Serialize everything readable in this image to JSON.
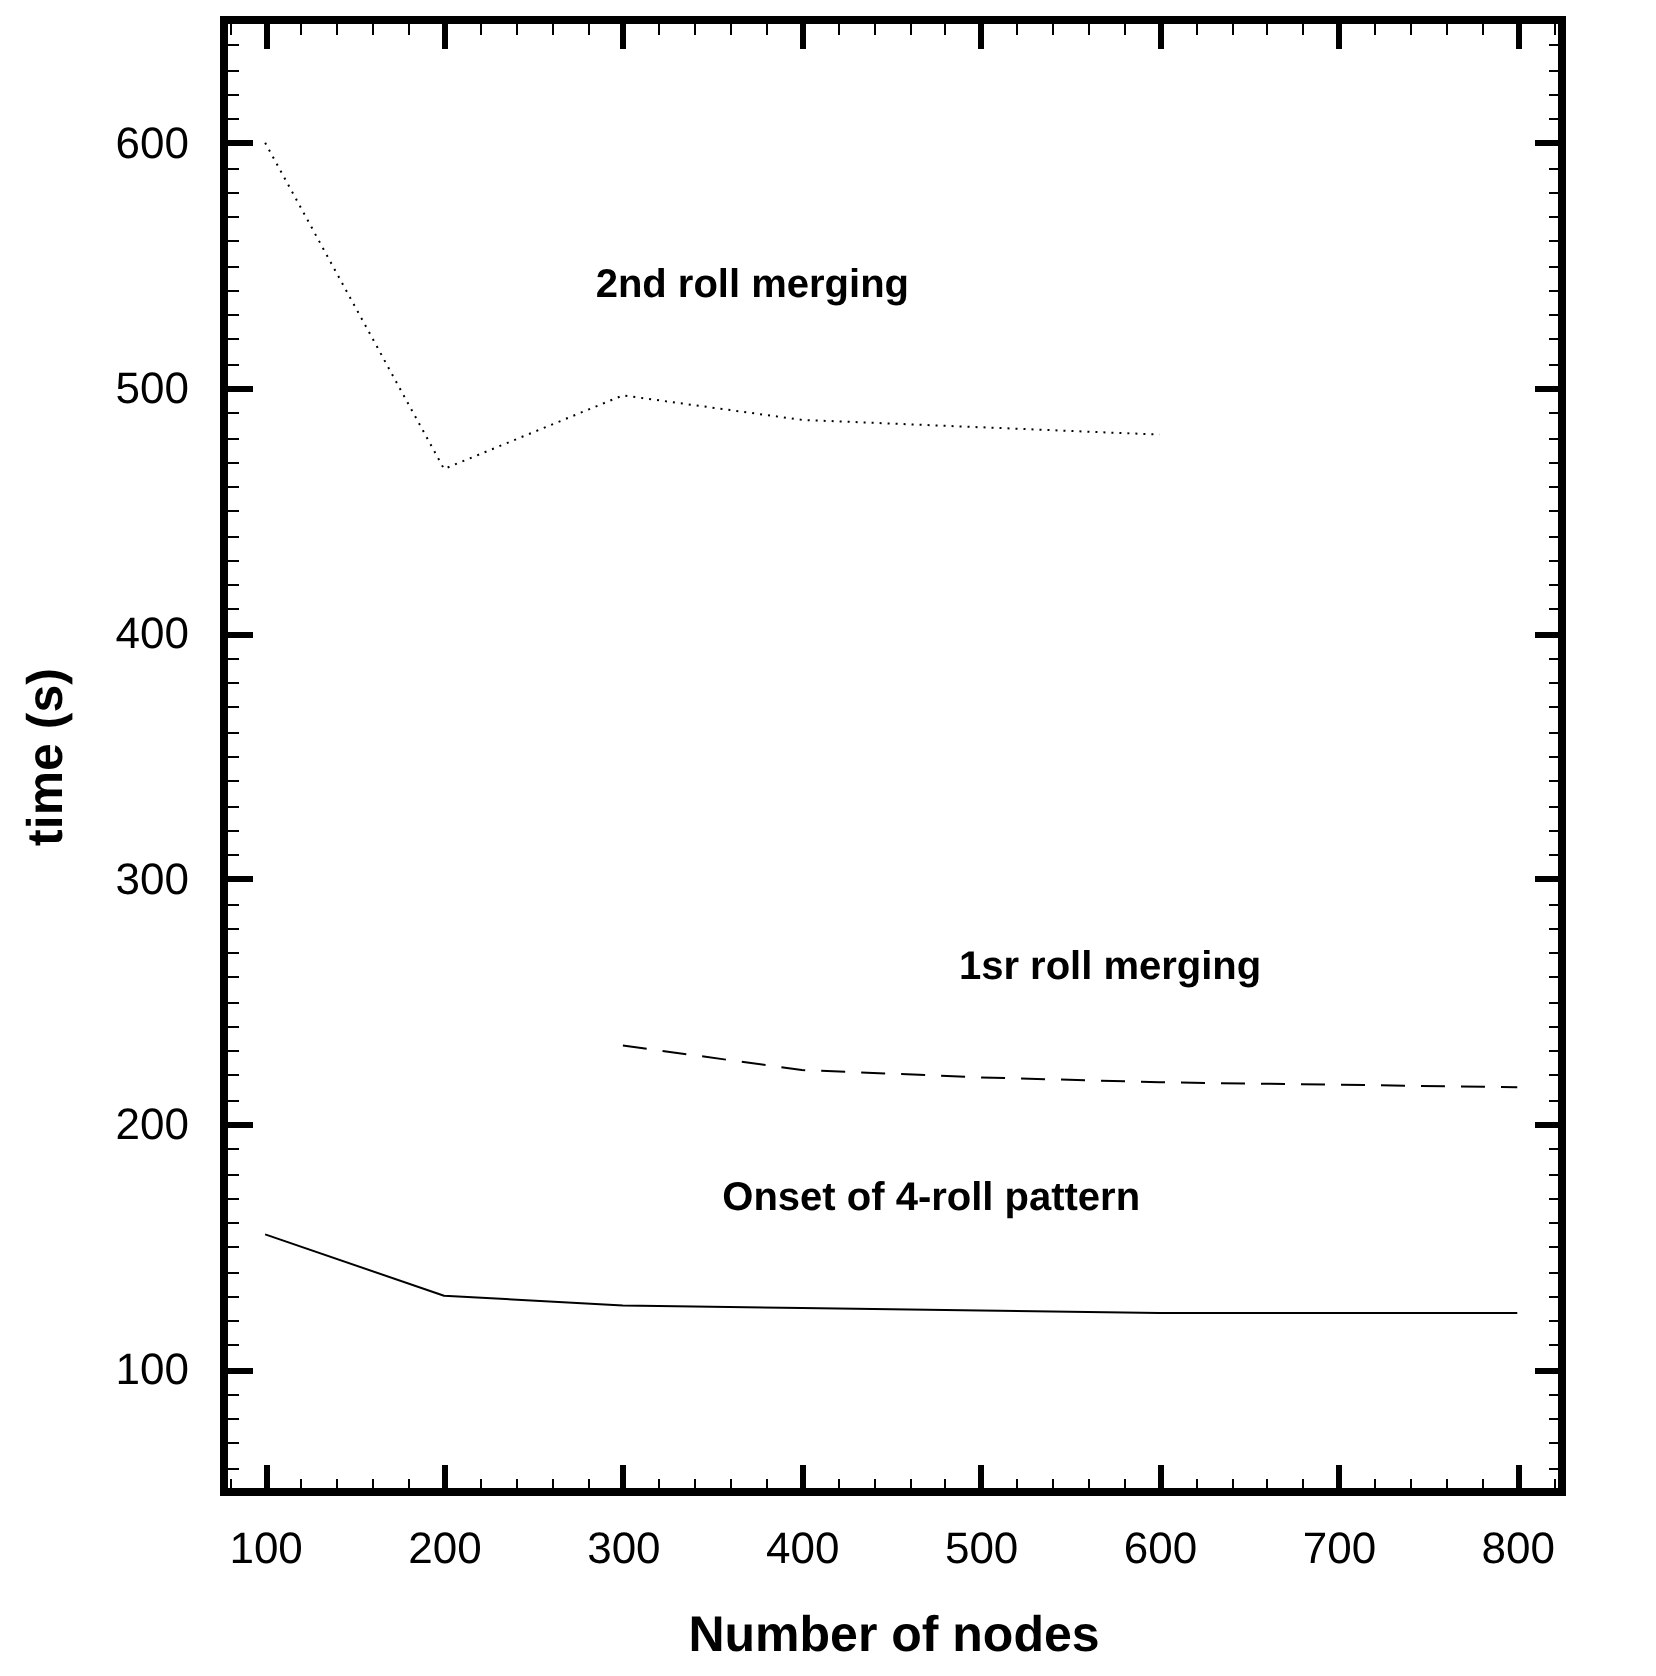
{
  "chart_data": {
    "type": "line",
    "xlabel": "Number of nodes",
    "ylabel": "time (s)",
    "xlim": [
      77,
      825
    ],
    "ylim": [
      50,
      650
    ],
    "xticks": [
      100,
      200,
      300,
      400,
      500,
      600,
      700,
      800,
      {
        "value": 80,
        "label": null
      },
      {
        "value": 120,
        "label": null
      },
      {
        "value": 140,
        "label": null
      },
      {
        "value": 160,
        "label": null
      },
      {
        "value": 180,
        "label": null
      },
      {
        "value": 220,
        "label": null
      },
      {
        "value": 240,
        "label": null
      },
      {
        "value": 260,
        "label": null
      },
      {
        "value": 280,
        "label": null
      },
      {
        "value": 320,
        "label": null
      },
      {
        "value": 340,
        "label": null
      },
      {
        "value": 360,
        "label": null
      },
      {
        "value": 380,
        "label": null
      },
      {
        "value": 420,
        "label": null
      },
      {
        "value": 440,
        "label": null
      },
      {
        "value": 460,
        "label": null
      },
      {
        "value": 480,
        "label": null
      },
      {
        "value": 520,
        "label": null
      },
      {
        "value": 540,
        "label": null
      },
      {
        "value": 560,
        "label": null
      },
      {
        "value": 580,
        "label": null
      },
      {
        "value": 620,
        "label": null
      },
      {
        "value": 640,
        "label": null
      },
      {
        "value": 660,
        "label": null
      },
      {
        "value": 680,
        "label": null
      },
      {
        "value": 720,
        "label": null
      },
      {
        "value": 740,
        "label": null
      },
      {
        "value": 760,
        "label": null
      },
      {
        "value": 780,
        "label": null
      },
      {
        "value": 820,
        "label": null
      }
    ],
    "yticks": [
      100,
      200,
      300,
      400,
      500,
      600,
      {
        "value": 60,
        "label": null
      },
      {
        "value": 70,
        "label": null
      },
      {
        "value": 80,
        "label": null
      },
      {
        "value": 90,
        "label": null
      },
      {
        "value": 110,
        "label": null
      },
      {
        "value": 120,
        "label": null
      },
      {
        "value": 130,
        "label": null
      },
      {
        "value": 140,
        "label": null
      },
      {
        "value": 150,
        "label": null
      },
      {
        "value": 160,
        "label": null
      },
      {
        "value": 170,
        "label": null
      },
      {
        "value": 180,
        "label": null
      },
      {
        "value": 190,
        "label": null
      },
      {
        "value": 210,
        "label": null
      },
      {
        "value": 220,
        "label": null
      },
      {
        "value": 230,
        "label": null
      },
      {
        "value": 240,
        "label": null
      },
      {
        "value": 250,
        "label": null
      },
      {
        "value": 260,
        "label": null
      },
      {
        "value": 270,
        "label": null
      },
      {
        "value": 280,
        "label": null
      },
      {
        "value": 290,
        "label": null
      },
      {
        "value": 310,
        "label": null
      },
      {
        "value": 320,
        "label": null
      },
      {
        "value": 330,
        "label": null
      },
      {
        "value": 340,
        "label": null
      },
      {
        "value": 350,
        "label": null
      },
      {
        "value": 360,
        "label": null
      },
      {
        "value": 370,
        "label": null
      },
      {
        "value": 380,
        "label": null
      },
      {
        "value": 390,
        "label": null
      },
      {
        "value": 410,
        "label": null
      },
      {
        "value": 420,
        "label": null
      },
      {
        "value": 430,
        "label": null
      },
      {
        "value": 440,
        "label": null
      },
      {
        "value": 450,
        "label": null
      },
      {
        "value": 460,
        "label": null
      },
      {
        "value": 470,
        "label": null
      },
      {
        "value": 480,
        "label": null
      },
      {
        "value": 490,
        "label": null
      },
      {
        "value": 510,
        "label": null
      },
      {
        "value": 520,
        "label": null
      },
      {
        "value": 530,
        "label": null
      },
      {
        "value": 540,
        "label": null
      },
      {
        "value": 550,
        "label": null
      },
      {
        "value": 560,
        "label": null
      },
      {
        "value": 570,
        "label": null
      },
      {
        "value": 580,
        "label": null
      },
      {
        "value": 590,
        "label": null
      },
      {
        "value": 610,
        "label": null
      },
      {
        "value": 620,
        "label": null
      },
      {
        "value": 630,
        "label": null
      },
      {
        "value": 640,
        "label": null
      }
    ],
    "x": [
      100,
      200,
      300,
      400,
      500,
      600,
      700,
      800
    ],
    "series": [
      {
        "name": "Onset of 4-roll pattern",
        "color": "#000000",
        "line_style": "solid",
        "values": [
          155,
          130,
          126,
          125,
          124,
          123,
          123,
          123
        ]
      },
      {
        "name": "1sr roll merging",
        "color": "#000000",
        "line_style": "dashed",
        "values": [
          null,
          null,
          232,
          222,
          219,
          217,
          216,
          215
        ]
      },
      {
        "name": "2nd roll merging",
        "color": "#000000",
        "line_style": "dotted",
        "values": [
          600,
          467,
          497,
          487,
          484,
          481,
          null,
          null
        ]
      }
    ],
    "grid": false,
    "marker": "none"
  }
}
